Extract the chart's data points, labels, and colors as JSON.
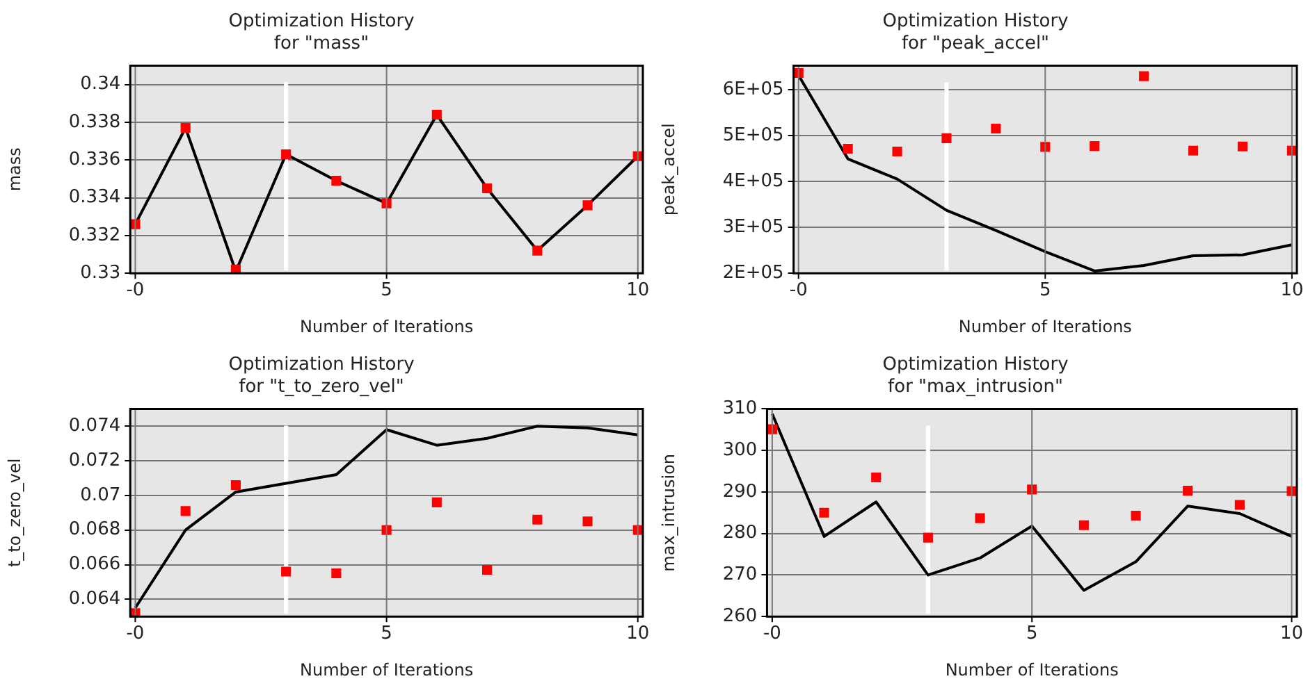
{
  "chart_data": [
    {
      "type": "line",
      "title": "Optimization History",
      "subtitle": "for \"mass\"",
      "xlabel": "Number of Iterations",
      "ylabel": "mass",
      "x": [
        0,
        1,
        2,
        3,
        4,
        5,
        6,
        7,
        8,
        9,
        10
      ],
      "xlim": [
        -0.1,
        10.1
      ],
      "xticks": [
        {
          "value": 0,
          "label": "-0"
        },
        {
          "value": 5,
          "label": "5"
        },
        {
          "value": 10,
          "label": "10"
        }
      ],
      "ylim": [
        0.33,
        0.341
      ],
      "yticks": [
        0.33,
        0.332,
        0.334,
        0.336,
        0.338,
        0.34
      ],
      "grid": true,
      "ref_lines": [
        {
          "axis": "x",
          "value": 3,
          "color": "#ffffff"
        }
      ],
      "series": [
        {
          "type": "scatter",
          "color": "#ff0000",
          "marker": "square",
          "values": [
            0.3326,
            0.3377,
            0.3302,
            0.3363,
            0.3349,
            0.3337,
            0.3384,
            0.3345,
            0.3312,
            0.3336,
            0.3362
          ]
        },
        {
          "type": "line",
          "color": "#000000",
          "marker": "none",
          "values": [
            0.3326,
            0.3377,
            0.3301,
            0.3363,
            0.3349,
            0.3337,
            0.3384,
            0.3345,
            0.3312,
            0.3336,
            0.3362
          ]
        }
      ]
    },
    {
      "type": "line",
      "title": "Optimization History",
      "subtitle": "for \"peak_accel\"",
      "xlabel": "Number of Iterations",
      "ylabel": "peak_accel",
      "x": [
        0,
        1,
        2,
        3,
        4,
        5,
        6,
        7,
        8,
        9,
        10
      ],
      "xlim": [
        -0.1,
        10.1
      ],
      "xticks": [
        {
          "value": 0,
          "label": "-0"
        },
        {
          "value": 5,
          "label": "5"
        },
        {
          "value": 10,
          "label": "10"
        }
      ],
      "ylim": [
        200000,
        652000
      ],
      "yticks": [
        {
          "value": 200000,
          "label": "2E+05"
        },
        {
          "value": 300000,
          "label": "3E+05"
        },
        {
          "value": 400000,
          "label": "4E+05"
        },
        {
          "value": 500000,
          "label": "5E+05"
        },
        {
          "value": 600000,
          "label": "6E+05"
        }
      ],
      "grid": true,
      "ref_lines": [
        {
          "axis": "x",
          "value": 3,
          "color": "#ffffff"
        }
      ],
      "series": [
        {
          "type": "scatter",
          "color": "#ff0000",
          "marker": "square",
          "values": [
            636000,
            471000,
            465000,
            494000,
            515000,
            475000,
            477000,
            629000,
            467000,
            476000,
            467000
          ]
        },
        {
          "type": "line",
          "color": "#000000",
          "marker": "none",
          "values": [
            631000,
            449000,
            405000,
            337000,
            293000,
            247000,
            205000,
            217000,
            238000,
            240000,
            262000
          ]
        }
      ]
    },
    {
      "type": "line",
      "title": "Optimization History",
      "subtitle": "for \"t_to_zero_vel\"",
      "xlabel": "Number of Iterations",
      "ylabel": "t_to_zero_vel",
      "x": [
        0,
        1,
        2,
        3,
        4,
        5,
        6,
        7,
        8,
        9,
        10
      ],
      "xlim": [
        -0.1,
        10.1
      ],
      "xticks": [
        {
          "value": 0,
          "label": "-0"
        },
        {
          "value": 5,
          "label": "5"
        },
        {
          "value": 10,
          "label": "10"
        }
      ],
      "ylim": [
        0.063,
        0.075
      ],
      "yticks": [
        0.064,
        0.066,
        0.068,
        0.07,
        0.072,
        0.074
      ],
      "grid": true,
      "ref_lines": [
        {
          "axis": "x",
          "value": 3,
          "color": "#ffffff"
        }
      ],
      "series": [
        {
          "type": "scatter",
          "color": "#ff0000",
          "marker": "square",
          "values": [
            0.0632,
            0.0691,
            0.0706,
            0.0656,
            0.0655,
            0.068,
            0.0696,
            0.0657,
            0.0686,
            0.0685,
            0.068
          ]
        },
        {
          "type": "line",
          "color": "#000000",
          "marker": "none",
          "values": [
            0.0635,
            0.068,
            0.0702,
            0.0707,
            0.0712,
            0.0738,
            0.0729,
            0.0733,
            0.074,
            0.0739,
            0.0735
          ]
        }
      ]
    },
    {
      "type": "line",
      "title": "Optimization History",
      "subtitle": "for \"max_intrusion\"",
      "xlabel": "Number of Iterations",
      "ylabel": "max_intrusion",
      "x": [
        0,
        1,
        2,
        3,
        4,
        5,
        6,
        7,
        8,
        9,
        10
      ],
      "xlim": [
        -0.1,
        10.1
      ],
      "xticks": [
        {
          "value": 0,
          "label": "-0"
        },
        {
          "value": 5,
          "label": "5"
        },
        {
          "value": 10,
          "label": "10"
        }
      ],
      "ylim": [
        260,
        310
      ],
      "yticks": [
        260,
        270,
        280,
        290,
        300,
        310
      ],
      "grid": true,
      "ref_lines": [
        {
          "axis": "x",
          "value": 3,
          "color": "#ffffff"
        }
      ],
      "series": [
        {
          "type": "scatter",
          "color": "#ff0000",
          "marker": "square",
          "values": [
            305.1,
            285,
            293.5,
            279,
            283.7,
            290.6,
            282,
            284.3,
            290.3,
            286.9,
            290.2
          ]
        },
        {
          "type": "line",
          "color": "#000000",
          "marker": "none",
          "values": [
            308.8,
            279.3,
            287.6,
            270,
            274.1,
            281.8,
            266.3,
            273.2,
            286.6,
            284.8,
            279.3
          ]
        }
      ]
    }
  ]
}
